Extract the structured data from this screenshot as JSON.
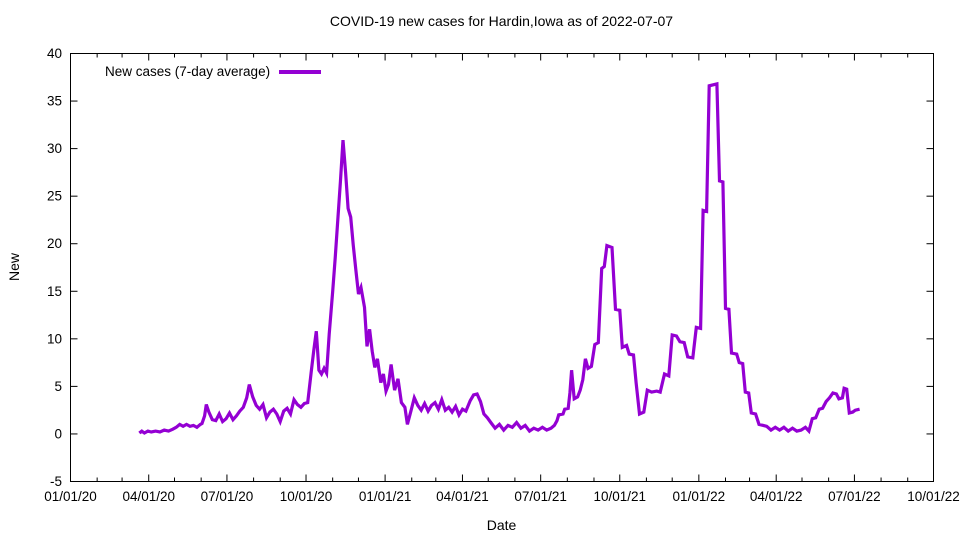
{
  "colors": {
    "line": "#9400D3",
    "axis": "#000000",
    "text": "#000000",
    "background": "#ffffff"
  },
  "chart_data": {
    "type": "line",
    "title": "COVID-19 new cases for Hardin,Iowa as of 2022-07-07",
    "xlabel": "Date",
    "ylabel": "New",
    "ylim": [
      -5,
      40
    ],
    "y_ticks": [
      -5,
      0,
      5,
      10,
      15,
      20,
      25,
      30,
      35,
      40
    ],
    "x_range": [
      "2020-01-01",
      "2022-10-01"
    ],
    "x_ticks": [
      {
        "date": "2020-01-01",
        "label": "01/01/20"
      },
      {
        "date": "2020-04-01",
        "label": "04/01/20"
      },
      {
        "date": "2020-07-01",
        "label": "07/01/20"
      },
      {
        "date": "2020-10-01",
        "label": "10/01/20"
      },
      {
        "date": "2021-01-01",
        "label": "01/01/21"
      },
      {
        "date": "2021-04-01",
        "label": "04/01/21"
      },
      {
        "date": "2021-07-01",
        "label": "07/01/21"
      },
      {
        "date": "2021-10-01",
        "label": "10/01/21"
      },
      {
        "date": "2022-01-01",
        "label": "01/01/22"
      },
      {
        "date": "2022-04-01",
        "label": "04/01/22"
      },
      {
        "date": "2022-07-01",
        "label": "07/01/22"
      },
      {
        "date": "2022-10-01",
        "label": "10/01/22"
      }
    ],
    "grid": false,
    "legend": {
      "label": "New cases (7-day average)",
      "position": "top-left-inside"
    },
    "series": [
      {
        "name": "New cases (7-day average)",
        "color": "#9400D3",
        "points": [
          [
            "2020-03-21",
            0.1
          ],
          [
            "2020-03-24",
            0.3
          ],
          [
            "2020-03-27",
            0.1
          ],
          [
            "2020-03-31",
            0.3
          ],
          [
            "2020-04-04",
            0.2
          ],
          [
            "2020-04-09",
            0.3
          ],
          [
            "2020-04-14",
            0.2
          ],
          [
            "2020-04-19",
            0.4
          ],
          [
            "2020-04-24",
            0.3
          ],
          [
            "2020-04-29",
            0.5
          ],
          [
            "2020-05-03",
            0.7
          ],
          [
            "2020-05-07",
            1.0
          ],
          [
            "2020-05-11",
            0.8
          ],
          [
            "2020-05-15",
            1.0
          ],
          [
            "2020-05-19",
            0.8
          ],
          [
            "2020-05-23",
            0.9
          ],
          [
            "2020-05-27",
            0.7
          ],
          [
            "2020-05-31",
            1.0
          ],
          [
            "2020-06-02",
            1.1
          ],
          [
            "2020-06-05",
            1.9
          ],
          [
            "2020-06-07",
            3.1
          ],
          [
            "2020-06-10",
            2.3
          ],
          [
            "2020-06-14",
            1.5
          ],
          [
            "2020-06-18",
            1.4
          ],
          [
            "2020-06-22",
            2.1
          ],
          [
            "2020-06-26",
            1.3
          ],
          [
            "2020-06-30",
            1.6
          ],
          [
            "2020-07-04",
            2.2
          ],
          [
            "2020-07-08",
            1.5
          ],
          [
            "2020-07-12",
            1.9
          ],
          [
            "2020-07-16",
            2.4
          ],
          [
            "2020-07-20",
            2.8
          ],
          [
            "2020-07-24",
            3.8
          ],
          [
            "2020-07-27",
            5.2
          ],
          [
            "2020-07-31",
            3.9
          ],
          [
            "2020-08-04",
            3.0
          ],
          [
            "2020-08-08",
            2.6
          ],
          [
            "2020-08-12",
            3.1
          ],
          [
            "2020-08-16",
            1.7
          ],
          [
            "2020-08-20",
            2.3
          ],
          [
            "2020-08-24",
            2.6
          ],
          [
            "2020-08-28",
            2.1
          ],
          [
            "2020-09-01",
            1.3
          ],
          [
            "2020-09-05",
            2.4
          ],
          [
            "2020-09-09",
            2.7
          ],
          [
            "2020-09-13",
            2.1
          ],
          [
            "2020-09-17",
            3.6
          ],
          [
            "2020-09-21",
            3.1
          ],
          [
            "2020-09-25",
            2.8
          ],
          [
            "2020-09-29",
            3.2
          ],
          [
            "2020-10-03",
            3.3
          ],
          [
            "2020-10-07",
            6.5
          ],
          [
            "2020-10-10",
            8.8
          ],
          [
            "2020-10-13",
            10.8
          ],
          [
            "2020-10-16",
            6.7
          ],
          [
            "2020-10-19",
            6.3
          ],
          [
            "2020-10-22",
            6.9
          ],
          [
            "2020-10-25",
            6.4
          ],
          [
            "2020-10-28",
            10.5
          ],
          [
            "2020-11-01",
            15.0
          ],
          [
            "2020-11-04",
            18.5
          ],
          [
            "2020-11-07",
            22.5
          ],
          [
            "2020-11-10",
            26.5
          ],
          [
            "2020-11-13",
            30.9
          ],
          [
            "2020-11-16",
            27.5
          ],
          [
            "2020-11-19",
            23.7
          ],
          [
            "2020-11-22",
            22.8
          ],
          [
            "2020-11-25",
            19.8
          ],
          [
            "2020-11-28",
            17.2
          ],
          [
            "2020-12-01",
            14.7
          ],
          [
            "2020-12-04",
            15.4
          ],
          [
            "2020-12-08",
            13.3
          ],
          [
            "2020-12-11",
            9.2
          ],
          [
            "2020-12-14",
            11.0
          ],
          [
            "2020-12-17",
            8.7
          ],
          [
            "2020-12-20",
            7.0
          ],
          [
            "2020-12-23",
            7.9
          ],
          [
            "2020-12-27",
            5.4
          ],
          [
            "2020-12-30",
            6.3
          ],
          [
            "2021-01-02",
            4.5
          ],
          [
            "2021-01-05",
            5.2
          ],
          [
            "2021-01-08",
            7.3
          ],
          [
            "2021-01-12",
            4.6
          ],
          [
            "2021-01-16",
            5.8
          ],
          [
            "2021-01-20",
            3.3
          ],
          [
            "2021-01-24",
            2.8
          ],
          [
            "2021-01-27",
            1.0
          ],
          [
            "2021-01-31",
            2.4
          ],
          [
            "2021-02-04",
            3.8
          ],
          [
            "2021-02-08",
            3.0
          ],
          [
            "2021-02-12",
            2.5
          ],
          [
            "2021-02-16",
            3.2
          ],
          [
            "2021-02-20",
            2.4
          ],
          [
            "2021-02-24",
            3.0
          ],
          [
            "2021-02-28",
            3.3
          ],
          [
            "2021-03-04",
            2.6
          ],
          [
            "2021-03-08",
            3.6
          ],
          [
            "2021-03-12",
            2.5
          ],
          [
            "2021-03-16",
            2.8
          ],
          [
            "2021-03-20",
            2.3
          ],
          [
            "2021-03-24",
            2.9
          ],
          [
            "2021-03-28",
            2.0
          ],
          [
            "2021-04-01",
            2.6
          ],
          [
            "2021-04-05",
            2.4
          ],
          [
            "2021-04-10",
            3.5
          ],
          [
            "2021-04-14",
            4.1
          ],
          [
            "2021-04-18",
            4.2
          ],
          [
            "2021-04-22",
            3.4
          ],
          [
            "2021-04-26",
            2.1
          ],
          [
            "2021-04-30",
            1.7
          ],
          [
            "2021-05-04",
            1.2
          ],
          [
            "2021-05-09",
            0.6
          ],
          [
            "2021-05-14",
            1.0
          ],
          [
            "2021-05-19",
            0.4
          ],
          [
            "2021-05-24",
            0.9
          ],
          [
            "2021-05-29",
            0.7
          ],
          [
            "2021-06-03",
            1.2
          ],
          [
            "2021-06-08",
            0.6
          ],
          [
            "2021-06-13",
            0.9
          ],
          [
            "2021-06-18",
            0.3
          ],
          [
            "2021-06-23",
            0.6
          ],
          [
            "2021-06-28",
            0.4
          ],
          [
            "2021-07-03",
            0.7
          ],
          [
            "2021-07-08",
            0.4
          ],
          [
            "2021-07-13",
            0.6
          ],
          [
            "2021-07-17",
            0.9
          ],
          [
            "2021-07-20",
            1.4
          ],
          [
            "2021-07-22",
            2.0
          ],
          [
            "2021-07-27",
            2.1
          ],
          [
            "2021-07-29",
            2.6
          ],
          [
            "2021-08-02",
            2.7
          ],
          [
            "2021-08-04",
            4.3
          ],
          [
            "2021-08-06",
            6.7
          ],
          [
            "2021-08-09",
            3.7
          ],
          [
            "2021-08-13",
            3.9
          ],
          [
            "2021-08-16",
            4.6
          ],
          [
            "2021-08-19",
            5.7
          ],
          [
            "2021-08-22",
            7.9
          ],
          [
            "2021-08-25",
            6.9
          ],
          [
            "2021-08-29",
            7.1
          ],
          [
            "2021-09-02",
            9.4
          ],
          [
            "2021-09-06",
            9.6
          ],
          [
            "2021-09-10",
            17.4
          ],
          [
            "2021-09-13",
            17.6
          ],
          [
            "2021-09-16",
            19.8
          ],
          [
            "2021-09-22",
            19.6
          ],
          [
            "2021-09-26",
            13.1
          ],
          [
            "2021-10-01",
            13.0
          ],
          [
            "2021-10-04",
            9.1
          ],
          [
            "2021-10-09",
            9.3
          ],
          [
            "2021-10-12",
            8.4
          ],
          [
            "2021-10-17",
            8.3
          ],
          [
            "2021-10-20",
            5.4
          ],
          [
            "2021-10-24",
            2.1
          ],
          [
            "2021-10-29",
            2.3
          ],
          [
            "2021-11-02",
            4.6
          ],
          [
            "2021-11-07",
            4.4
          ],
          [
            "2021-11-13",
            4.5
          ],
          [
            "2021-11-17",
            4.4
          ],
          [
            "2021-11-22",
            6.3
          ],
          [
            "2021-11-27",
            6.1
          ],
          [
            "2021-12-01",
            10.4
          ],
          [
            "2021-12-06",
            10.3
          ],
          [
            "2021-12-10",
            9.7
          ],
          [
            "2021-12-15",
            9.6
          ],
          [
            "2021-12-19",
            8.1
          ],
          [
            "2021-12-25",
            8.0
          ],
          [
            "2021-12-29",
            11.2
          ],
          [
            "2022-01-03",
            11.1
          ],
          [
            "2022-01-06",
            23.5
          ],
          [
            "2022-01-10",
            23.4
          ],
          [
            "2022-01-13",
            36.6
          ],
          [
            "2022-01-22",
            36.8
          ],
          [
            "2022-01-25",
            26.6
          ],
          [
            "2022-01-29",
            26.5
          ],
          [
            "2022-02-01",
            13.2
          ],
          [
            "2022-02-05",
            13.1
          ],
          [
            "2022-02-08",
            8.5
          ],
          [
            "2022-02-14",
            8.4
          ],
          [
            "2022-02-17",
            7.5
          ],
          [
            "2022-02-21",
            7.4
          ],
          [
            "2022-02-24",
            4.4
          ],
          [
            "2022-02-28",
            4.3
          ],
          [
            "2022-03-03",
            2.2
          ],
          [
            "2022-03-08",
            2.1
          ],
          [
            "2022-03-12",
            1.0
          ],
          [
            "2022-03-17",
            0.9
          ],
          [
            "2022-03-21",
            0.8
          ],
          [
            "2022-03-26",
            0.4
          ],
          [
            "2022-03-31",
            0.7
          ],
          [
            "2022-04-05",
            0.4
          ],
          [
            "2022-04-10",
            0.7
          ],
          [
            "2022-04-15",
            0.3
          ],
          [
            "2022-04-20",
            0.6
          ],
          [
            "2022-04-25",
            0.3
          ],
          [
            "2022-04-30",
            0.4
          ],
          [
            "2022-05-05",
            0.7
          ],
          [
            "2022-05-09",
            0.3
          ],
          [
            "2022-05-13",
            1.6
          ],
          [
            "2022-05-17",
            1.7
          ],
          [
            "2022-05-21",
            2.6
          ],
          [
            "2022-05-25",
            2.7
          ],
          [
            "2022-05-29",
            3.4
          ],
          [
            "2022-06-02",
            3.8
          ],
          [
            "2022-06-06",
            4.3
          ],
          [
            "2022-06-10",
            4.2
          ],
          [
            "2022-06-13",
            3.7
          ],
          [
            "2022-06-17",
            3.8
          ],
          [
            "2022-06-19",
            4.8
          ],
          [
            "2022-06-22",
            4.7
          ],
          [
            "2022-06-25",
            2.2
          ],
          [
            "2022-06-29",
            2.3
          ],
          [
            "2022-07-02",
            2.5
          ],
          [
            "2022-07-07",
            2.6
          ]
        ]
      }
    ]
  }
}
